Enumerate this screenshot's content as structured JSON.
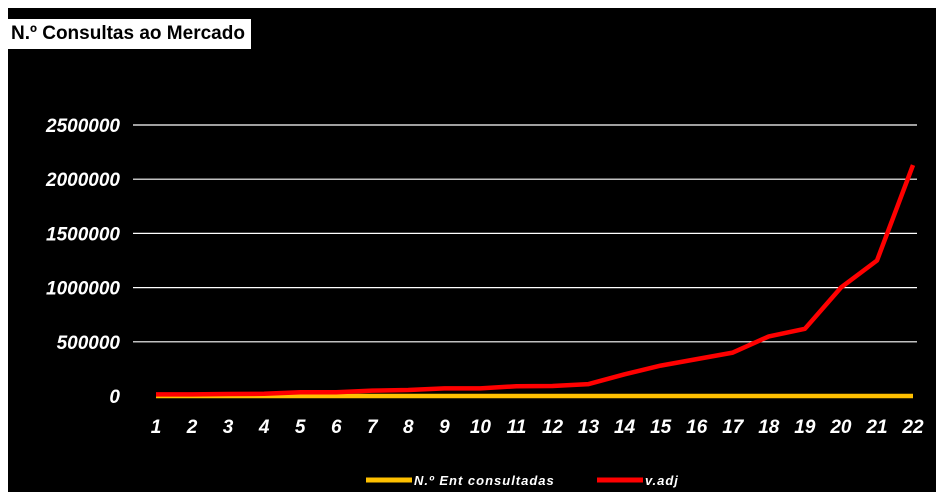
{
  "chart_data": {
    "type": "line",
    "title": "N.º Consultas ao Mercado",
    "x": [
      "1",
      "2",
      "3",
      "4",
      "5",
      "6",
      "7",
      "8",
      "9",
      "10",
      "11",
      "12",
      "13",
      "14",
      "15",
      "16",
      "17",
      "18",
      "19",
      "20",
      "21",
      "22"
    ],
    "ylim": [
      0,
      2500000
    ],
    "yticks": [
      0,
      500000,
      1000000,
      1500000,
      2000000,
      2500000
    ],
    "ytick_labels": [
      "0",
      "500000",
      "1000000",
      "1500000",
      "2000000",
      "2500000"
    ],
    "grid": true,
    "legend_position": "bottom",
    "background": "#000000",
    "series": [
      {
        "name": "N.º Ent consultadas",
        "color": "#FFC000",
        "values": [
          1,
          2,
          2,
          3,
          3,
          3,
          4,
          4,
          4,
          5,
          5,
          5,
          6,
          6,
          7,
          7,
          8,
          8,
          9,
          9,
          10,
          10
        ]
      },
      {
        "name": "v.adj",
        "color": "#FF0000",
        "values": [
          15000,
          15000,
          18000,
          20000,
          35000,
          35000,
          50000,
          55000,
          70000,
          70000,
          90000,
          92000,
          110000,
          200000,
          280000,
          340000,
          400000,
          550000,
          620000,
          1000000,
          1250000,
          2130000
        ]
      }
    ]
  }
}
